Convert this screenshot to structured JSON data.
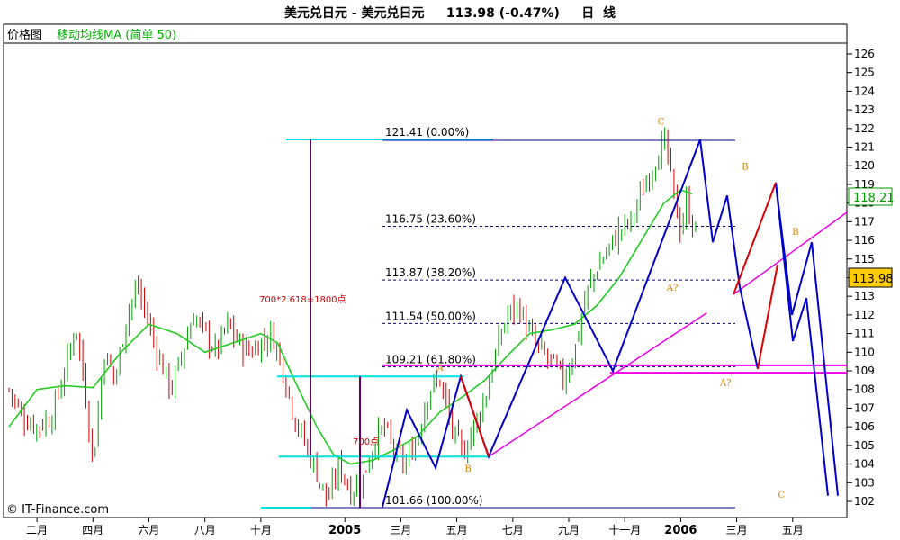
{
  "header": {
    "title": "美元兑日元 - 美元兑日元     113.98 (-0.47%)     日  线"
  },
  "legend": {
    "price_label": "价格图",
    "ma_label": "移动均线MA (简单 50)"
  },
  "copyright": "© IT-Finance.com",
  "colors": {
    "candle_up": "#00a000",
    "candle_down": "#d00000",
    "ma": "#22cc22",
    "fib_box": "#00e0e0",
    "fib_dash": "#000099",
    "wave_blue": "#0000cc",
    "wave_red": "#dd0000",
    "trend_magenta": "#ee00ee",
    "measure": "#660066",
    "last_price_badge": "#ffcc00",
    "ma_badge_text": "#009900"
  },
  "chart_data": {
    "type": "candlestick",
    "title": "美元兑日元 - 美元兑日元",
    "last_price": "113.98",
    "last_change": "-0.47%",
    "ma_last": "118.21",
    "ylim": [
      101.5,
      126.7
    ],
    "y_ticks": [
      102,
      103,
      104,
      105,
      106,
      107,
      108,
      109,
      110,
      111,
      112,
      113,
      114,
      115,
      116,
      117,
      118,
      119,
      120,
      121,
      122,
      123,
      124,
      125,
      126
    ],
    "x_ticks": [
      {
        "label": "二月",
        "idx": 1,
        "year": false
      },
      {
        "label": "四月",
        "idx": 3,
        "year": false
      },
      {
        "label": "六月",
        "idx": 5,
        "year": false
      },
      {
        "label": "八月",
        "idx": 7,
        "year": false
      },
      {
        "label": "十月",
        "idx": 9,
        "year": false
      },
      {
        "label": "2005",
        "idx": 12,
        "year": true
      },
      {
        "label": "三月",
        "idx": 14,
        "year": false
      },
      {
        "label": "五月",
        "idx": 16,
        "year": false
      },
      {
        "label": "七月",
        "idx": 18,
        "year": false
      },
      {
        "label": "九月",
        "idx": 20,
        "year": false
      },
      {
        "label": "十一月",
        "idx": 22,
        "year": false
      },
      {
        "label": "2006",
        "idx": 24,
        "year": true
      },
      {
        "label": "三月",
        "idx": 26,
        "year": false
      },
      {
        "label": "五月",
        "idx": 28,
        "year": false
      }
    ],
    "price_path": [
      [
        0,
        108
      ],
      [
        0.5,
        106.5
      ],
      [
        1,
        106
      ],
      [
        1.5,
        106.5
      ],
      [
        2,
        109
      ],
      [
        2.4,
        111.5
      ],
      [
        2.8,
        107
      ],
      [
        3,
        104
      ],
      [
        3.4,
        110
      ],
      [
        3.8,
        108.5
      ],
      [
        4.2,
        112
      ],
      [
        4.6,
        113.5
      ],
      [
        5,
        111.5
      ],
      [
        5.4,
        109.5
      ],
      [
        5.8,
        108
      ],
      [
        6.2,
        110
      ],
      [
        6.6,
        112
      ],
      [
        7,
        111
      ],
      [
        7.4,
        110
      ],
      [
        7.8,
        111.5
      ],
      [
        8.2,
        110.5
      ],
      [
        8.6,
        110
      ],
      [
        9,
        110.5
      ],
      [
        9.4,
        111
      ],
      [
        9.8,
        109
      ],
      [
        10.2,
        106.5
      ],
      [
        10.6,
        105
      ],
      [
        11,
        103.5
      ],
      [
        11.4,
        102
      ],
      [
        11.8,
        104
      ],
      [
        12.2,
        102.5
      ],
      [
        12.6,
        103
      ],
      [
        13,
        105
      ],
      [
        13.4,
        106
      ],
      [
        13.8,
        104.5
      ],
      [
        14.2,
        104
      ],
      [
        14.6,
        105.5
      ],
      [
        15,
        108
      ],
      [
        15.4,
        108.5
      ],
      [
        15.8,
        106
      ],
      [
        16.2,
        104.5
      ],
      [
        16.6,
        106
      ],
      [
        17,
        107.5
      ],
      [
        17.4,
        110
      ],
      [
        17.8,
        112
      ],
      [
        18.2,
        112.5
      ],
      [
        18.6,
        111
      ],
      [
        19,
        110
      ],
      [
        19.4,
        109.5
      ],
      [
        19.8,
        108.5
      ],
      [
        20.2,
        110
      ],
      [
        20.6,
        113
      ],
      [
        21,
        114.5
      ],
      [
        21.4,
        115.5
      ],
      [
        21.8,
        116.5
      ],
      [
        22.2,
        117
      ],
      [
        22.6,
        118.5
      ],
      [
        23,
        120
      ],
      [
        23.4,
        121.3
      ],
      [
        23.6,
        120
      ],
      [
        23.8,
        118
      ],
      [
        24,
        116.5
      ],
      [
        24.2,
        118
      ],
      [
        24.4,
        117
      ],
      [
        24.6,
        116
      ]
    ],
    "ma_path": [
      [
        0,
        106
      ],
      [
        1,
        108
      ],
      [
        2,
        108.2
      ],
      [
        3,
        108.1
      ],
      [
        4,
        110
      ],
      [
        5,
        111.5
      ],
      [
        6,
        111
      ],
      [
        7,
        110
      ],
      [
        8,
        110.5
      ],
      [
        9,
        111
      ],
      [
        9.6,
        110.5
      ],
      [
        10.2,
        108.5
      ],
      [
        11,
        106
      ],
      [
        11.6,
        104.5
      ],
      [
        12.2,
        104
      ],
      [
        13,
        104.2
      ],
      [
        13.8,
        104.8
      ],
      [
        14.6,
        105.5
      ],
      [
        15.4,
        106.8
      ],
      [
        16.2,
        107.6
      ],
      [
        17,
        108.5
      ],
      [
        17.8,
        109.8
      ],
      [
        18.6,
        111
      ],
      [
        19.4,
        111.2
      ],
      [
        20.2,
        111.5
      ],
      [
        21,
        112.5
      ],
      [
        21.8,
        114
      ],
      [
        22.6,
        116
      ],
      [
        23.4,
        118
      ],
      [
        24,
        118.7
      ],
      [
        24.4,
        118.5
      ]
    ],
    "fib_levels": [
      {
        "label": "121.41 (0.00%)",
        "value": 121.41
      },
      {
        "label": "116.75 (23.60%)",
        "value": 116.75
      },
      {
        "label": "113.87 (38.20%)",
        "value": 113.87
      },
      {
        "label": "111.54 (50.00%)",
        "value": 111.54
      },
      {
        "label": "109.21 (61.80%)",
        "value": 109.21
      },
      {
        "label": "101.66 (100.00%)",
        "value": 101.66
      }
    ],
    "annotations": {
      "measure_big": "700*2.618=1800点",
      "measure_small": "700点"
    },
    "wave_labels": [
      {
        "text": "C",
        "x": 23.3,
        "y": 122.2
      },
      {
        "text": "B",
        "x": 16.4,
        "y": 103.6
      },
      {
        "text": "A",
        "x": 15.4,
        "y": 109.0
      },
      {
        "text": "A?",
        "x": 23.7,
        "y": 113.3
      },
      {
        "text": "A?",
        "x": 25.6,
        "y": 108.2
      },
      {
        "text": "B",
        "x": 26.3,
        "y": 119.8
      },
      {
        "text": "B",
        "x": 28.1,
        "y": 116.3
      },
      {
        "text": "C",
        "x": 27.6,
        "y": 102.2
      }
    ]
  }
}
